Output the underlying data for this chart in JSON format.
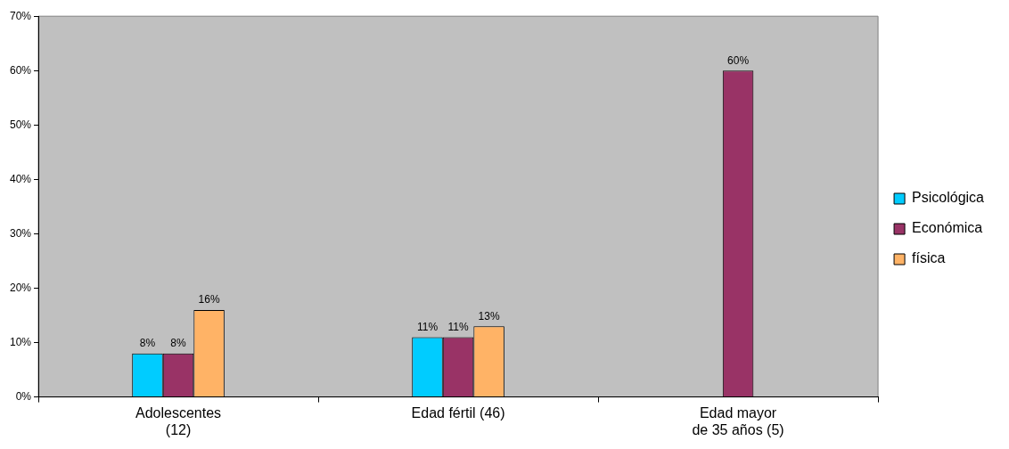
{
  "chart_data": {
    "type": "bar",
    "categories": [
      "Adolescentes\n(12)",
      "Edad fértil (46)",
      "Edad mayor\nde 35 años (5)"
    ],
    "series": [
      {
        "name": "Psicológica",
        "color": "#00ccff",
        "values": [
          8,
          11,
          null
        ],
        "value_labels": [
          "8%",
          "11%",
          null
        ]
      },
      {
        "name": "Económica",
        "color": "#993366",
        "values": [
          8,
          11,
          60
        ],
        "value_labels": [
          "8%",
          "11%",
          "60%"
        ]
      },
      {
        "name": "física",
        "color": "#ffb366",
        "values": [
          16,
          13,
          null
        ],
        "value_labels": [
          "16%",
          "13%",
          null
        ]
      }
    ],
    "ylim": [
      0,
      70
    ],
    "yticks": [
      {
        "value": 0,
        "label": "0%"
      },
      {
        "value": 10,
        "label": "10%"
      },
      {
        "value": 20,
        "label": "20%"
      },
      {
        "value": 30,
        "label": "30%"
      },
      {
        "value": 40,
        "label": "40%"
      },
      {
        "value": 50,
        "label": "50%"
      },
      {
        "value": 60,
        "label": "60%"
      },
      {
        "value": 70,
        "label": "70%"
      }
    ],
    "grid": false,
    "legend": "right"
  }
}
